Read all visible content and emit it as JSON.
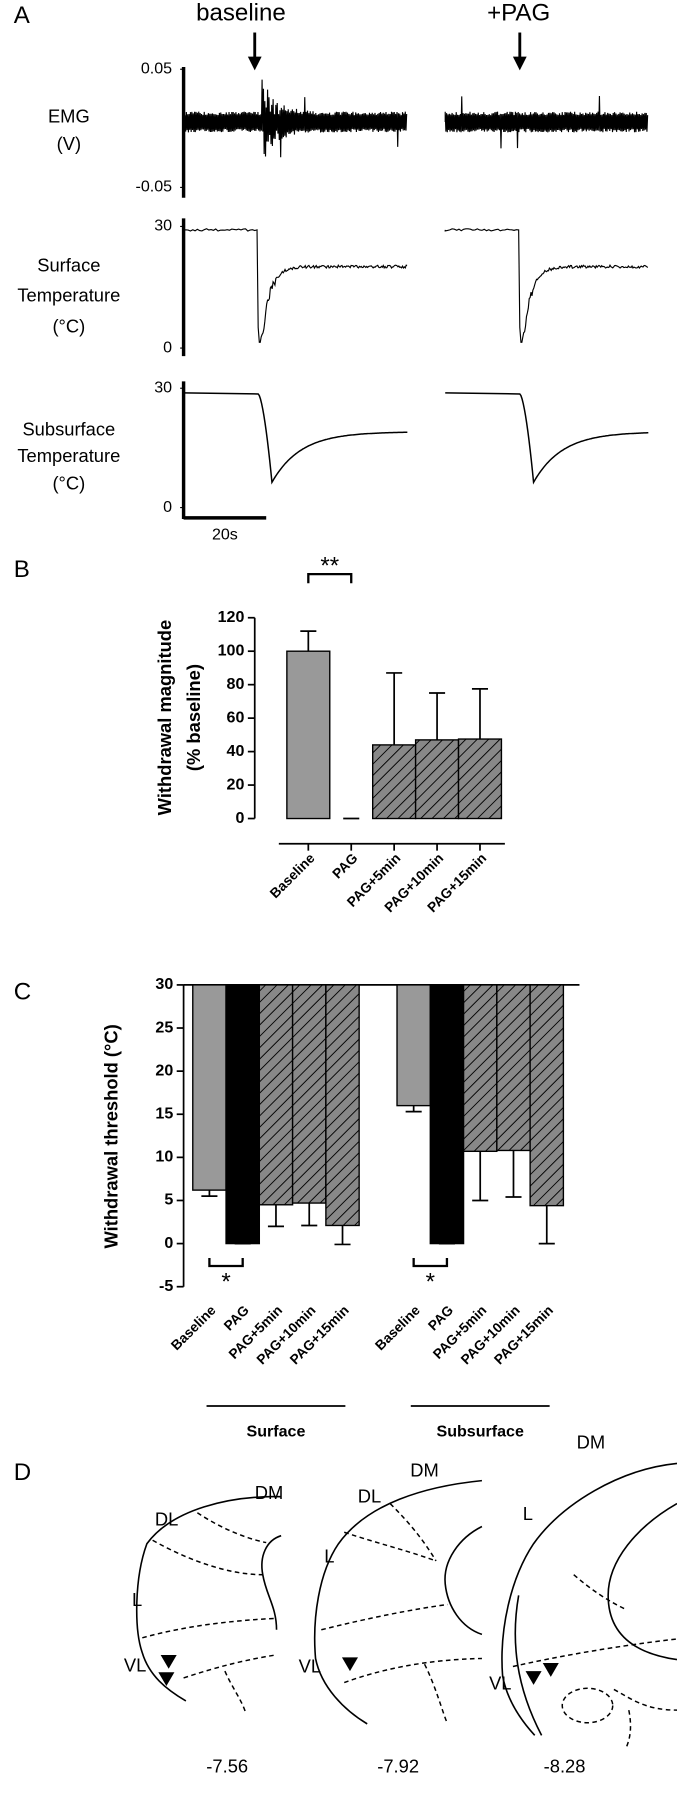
{
  "chart_data": [
    {
      "type": "trace",
      "panel_label": "A",
      "annotations": [
        "baseline",
        "+PAG"
      ],
      "ylabel": [
        "EMG",
        "(V)"
      ],
      "ylim": [
        -0.05,
        0.05
      ],
      "yticks": [
        -0.05,
        0.05
      ]
    },
    {
      "type": "trace",
      "ylabel": [
        "Surface",
        "Temperature",
        "(°C)"
      ],
      "ylim": [
        0,
        30
      ],
      "yticks": [
        0,
        30
      ]
    },
    {
      "type": "trace",
      "ylabel": [
        "Subsurface",
        "Temperature",
        "(°C)"
      ],
      "ylim": [
        0,
        30
      ],
      "yticks": [
        0,
        30
      ],
      "scale_bar": "20s"
    },
    {
      "type": "bar",
      "panel_label": "B",
      "ylabel": [
        "Withdrawal magnitude",
        "(% baseline)"
      ],
      "categories": [
        "Baseline",
        "PAG",
        "PAG+5min",
        "PAG+10min",
        "PAG+15min"
      ],
      "values": [
        100,
        0,
        44,
        47,
        47.5
      ],
      "errors": [
        12,
        0,
        43,
        28,
        30
      ],
      "colors": [
        "#999999",
        "#000000",
        "#888888",
        "#888888",
        "#888888"
      ],
      "hatched": [
        false,
        false,
        true,
        true,
        true
      ],
      "significance": "**",
      "ylim": [
        0,
        120
      ],
      "yticks": [
        0,
        20,
        40,
        60,
        80,
        100,
        120
      ]
    },
    {
      "type": "hanging_bar",
      "panel_label": "C",
      "ylabel": [
        "Withdrawal threshold (°C)"
      ],
      "categories": [
        "Baseline",
        "PAG",
        "PAG+5min",
        "PAG+10min",
        "PAG+15min"
      ],
      "colors": [
        "#999999",
        "#000000",
        "#888888",
        "#888888",
        "#888888"
      ],
      "hatched": [
        false,
        false,
        true,
        true,
        true
      ],
      "series": [
        {
          "name": "Surface",
          "values": [
            6.2,
            0,
            4.5,
            4.7,
            2.1
          ],
          "errors": [
            0.7,
            0,
            2.5,
            2.6,
            2.2
          ],
          "significance": "*"
        },
        {
          "name": "Subsurface",
          "values": [
            16,
            0,
            10.7,
            10.8,
            4.4
          ],
          "errors": [
            0.7,
            0,
            5.7,
            5.4,
            4.4
          ],
          "significance": "*"
        }
      ],
      "ylim": [
        -5,
        30
      ],
      "yticks": [
        -5,
        0,
        5,
        10,
        15,
        20,
        25,
        30
      ]
    }
  ],
  "panel_d": {
    "panel_label": "D",
    "sections": [
      {
        "labels": [
          "DM",
          "DL",
          "L",
          "VL"
        ],
        "coordinate": -7.56
      },
      {
        "labels": [
          "DM",
          "DL",
          "L",
          "VL"
        ],
        "coordinate": -7.92
      },
      {
        "labels": [
          "DM",
          "L",
          "VL"
        ],
        "coordinate": -8.28
      }
    ]
  }
}
